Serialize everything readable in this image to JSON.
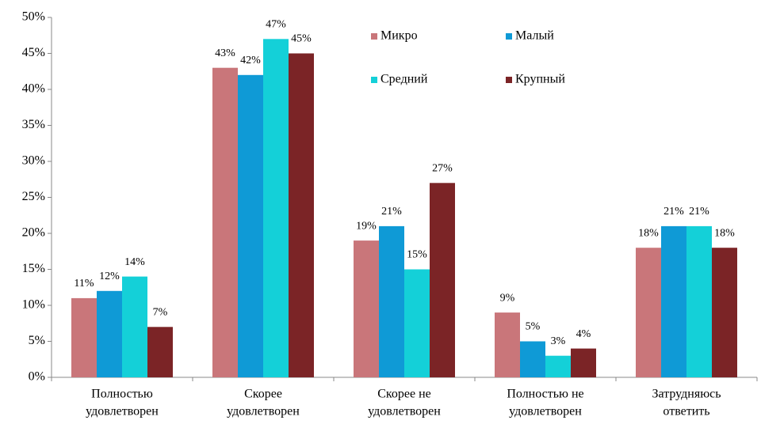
{
  "chart_data": {
    "type": "bar",
    "categories": [
      [
        "Полностью",
        "удовлетворен"
      ],
      [
        "Скорее",
        "удовлетворен"
      ],
      [
        "Скорее не",
        "удовлетворен"
      ],
      [
        "Полностью не",
        "удовлетворен"
      ],
      [
        "Затрудняюсь",
        "ответить"
      ]
    ],
    "series": [
      {
        "name": "Микро",
        "color": "#c9767a",
        "values": [
          11,
          43,
          19,
          9,
          18
        ],
        "value_labels": [
          "11%",
          "43%",
          "19%",
          "9%",
          "18%"
        ]
      },
      {
        "name": "Малый",
        "color": "#0f9ad6",
        "values": [
          12,
          42,
          21,
          5,
          21
        ],
        "value_labels": [
          "12%",
          "42%",
          "21%",
          "5%",
          "21%"
        ]
      },
      {
        "name": "Средний",
        "color": "#14d0d8",
        "values": [
          14,
          47,
          15,
          3,
          21
        ],
        "value_labels": [
          "14%",
          "47%",
          "15%",
          "3%",
          "21%"
        ]
      },
      {
        "name": "Крупный",
        "color": "#7b2426",
        "values": [
          7,
          45,
          27,
          4,
          18
        ],
        "value_labels": [
          "7%",
          "45%",
          "27%",
          "4%",
          "18%"
        ]
      }
    ],
    "ylim": [
      0,
      50
    ],
    "yticks": [
      {
        "value": 0,
        "label": "0%"
      },
      {
        "value": 5,
        "label": "5%"
      },
      {
        "value": 10,
        "label": "10%"
      },
      {
        "value": 15,
        "label": "15%"
      },
      {
        "value": 20,
        "label": "20%"
      },
      {
        "value": 25,
        "label": "25%"
      },
      {
        "value": 30,
        "label": "30%"
      },
      {
        "value": 35,
        "label": "35%"
      },
      {
        "value": 40,
        "label": "40%"
      },
      {
        "value": 45,
        "label": "45%"
      },
      {
        "value": 50,
        "label": "50%"
      }
    ],
    "grid": false,
    "legend": "top-center"
  }
}
